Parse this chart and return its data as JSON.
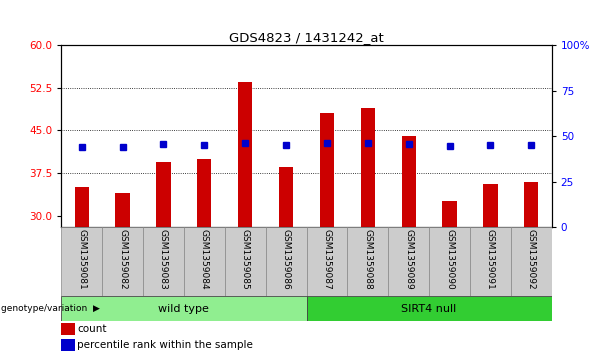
{
  "title": "GDS4823 / 1431242_at",
  "samples": [
    "GSM1359081",
    "GSM1359082",
    "GSM1359083",
    "GSM1359084",
    "GSM1359085",
    "GSM1359086",
    "GSM1359087",
    "GSM1359088",
    "GSM1359089",
    "GSM1359090",
    "GSM1359091",
    "GSM1359092"
  ],
  "count_values": [
    35.0,
    34.0,
    39.5,
    40.0,
    53.5,
    38.5,
    48.0,
    49.0,
    44.0,
    32.5,
    35.5,
    36.0
  ],
  "percentile_values": [
    44.0,
    44.0,
    45.5,
    45.0,
    46.0,
    45.0,
    46.0,
    46.0,
    45.5,
    44.5,
    45.0,
    45.0
  ],
  "groups": [
    "wild type",
    "wild type",
    "wild type",
    "wild type",
    "wild type",
    "wild type",
    "SIRT4 null",
    "SIRT4 null",
    "SIRT4 null",
    "SIRT4 null",
    "SIRT4 null",
    "SIRT4 null"
  ],
  "group_colors": {
    "wild type": "#90EE90",
    "SIRT4 null": "#32CD32"
  },
  "ylim_left": [
    28,
    60
  ],
  "ylim_right": [
    0,
    100
  ],
  "yticks_left": [
    30,
    37.5,
    45,
    52.5,
    60
  ],
  "yticks_right": [
    0,
    25,
    50,
    75,
    100
  ],
  "bar_color": "#CC0000",
  "dot_color": "#0000CC",
  "bar_width": 0.35,
  "background_color": "#ffffff",
  "plot_bg": "#ffffff",
  "label_count": "count",
  "label_percentile": "percentile rank within the sample",
  "genotype_label": "genotype/variation"
}
